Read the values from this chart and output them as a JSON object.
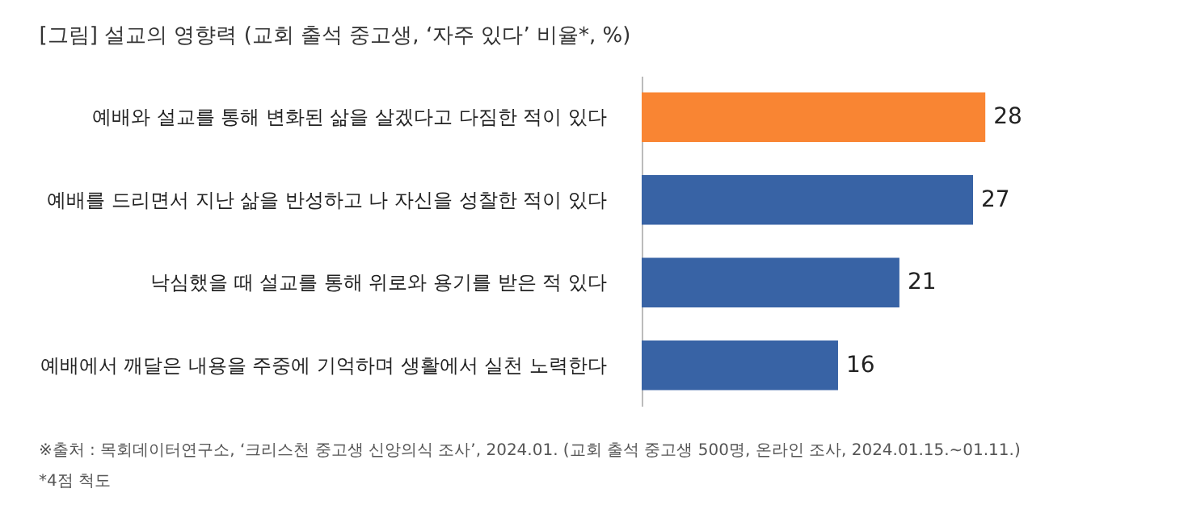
{
  "chart_data": {
    "type": "bar",
    "orientation": "horizontal",
    "title": "[그림] 설교의 영향력 (교회 출석 중고생, ‘자주 있다’ 비율*, %)",
    "categories": [
      "예배와 설교를 통해 변화된 삶을 살겠다고 다짐한 적이 있다",
      "예배를 드리면서 지난 삶을 반성하고 나 자신을 성찰한 적이 있다",
      "낙심했을 때 설교를 통해 위로와 용기를 받은 적 있다",
      "예배에서 깨달은 내용을 주중에 기억하며 생활에서 실천 노력한다"
    ],
    "values": [
      28,
      27,
      21,
      16
    ],
    "colors": [
      "#f98533",
      "#3863a5",
      "#3863a5",
      "#3863a5"
    ],
    "data_labels": true,
    "annotations": [
      "※출처 : 목회데이터연구소, ‘크리스천 중고생 신앙의식 조사’, 2024.01. (교회 출석 중고생 500명, 온라인 조사, 2024.01.15.~01.11.)",
      "*4점 척도"
    ]
  }
}
